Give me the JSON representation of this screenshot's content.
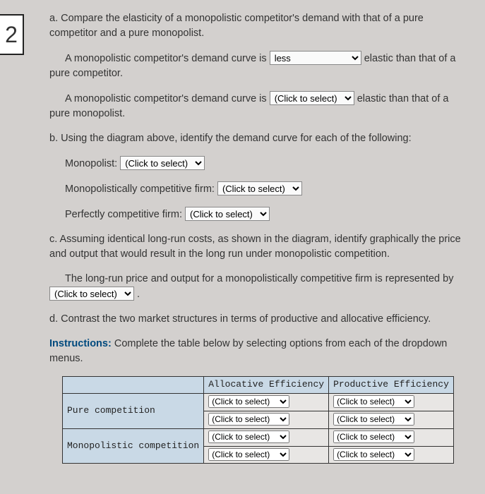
{
  "question_number": "2",
  "part_a": {
    "intro": "a. Compare the elasticity of a monopolistic competitor's demand with that of a pure competitor and a pure monopolist.",
    "line1_pre": "A monopolistic competitor's demand curve is ",
    "line1_select": "less",
    "line1_post": " elastic than that of a pure competitor.",
    "line2_pre": "A monopolistic competitor's demand curve is ",
    "line2_select": "(Click to select)",
    "line2_post": " elastic than that of a pure monopolist."
  },
  "part_b": {
    "intro": "b. Using the diagram above, identify the demand curve for each of the following:",
    "monopolist_label": "Monopolist: ",
    "monopolist_select": "(Click to select)",
    "monocomp_label": "Monopolistically competitive firm: ",
    "monocomp_select": "(Click to select)",
    "perfect_label": "Perfectly competitive firm: ",
    "perfect_select": "(Click to select)"
  },
  "part_c": {
    "intro": "c. Assuming identical long-run costs, as shown in the diagram, identify graphically the price and output that would result in the long run under monopolistic competition.",
    "line_pre": "The long-run price and output for a monopolistically competitive firm is represented by ",
    "line_select": "(Click to select)",
    "line_post": " ."
  },
  "part_d": {
    "intro": "d. Contrast the two market structures in terms of productive and allocative efficiency.",
    "instructions_label": "Instructions:",
    "instructions_text": " Complete the table below by selecting options from each of the dropdown menus."
  },
  "table": {
    "header_alloc": "Allocative Efficiency",
    "header_prod": "Productive Efficiency",
    "row1_label": "Pure competition",
    "row2_label": "Monopolistic competition",
    "cell_placeholder": "(Click to select)",
    "colors": {
      "header_bg": "#c9d9e6",
      "cell_bg": "#e8e6e4",
      "border": "#333333"
    }
  },
  "colors": {
    "page_bg": "#d3d0ce",
    "text": "#333333",
    "instructions": "#004a7e"
  }
}
